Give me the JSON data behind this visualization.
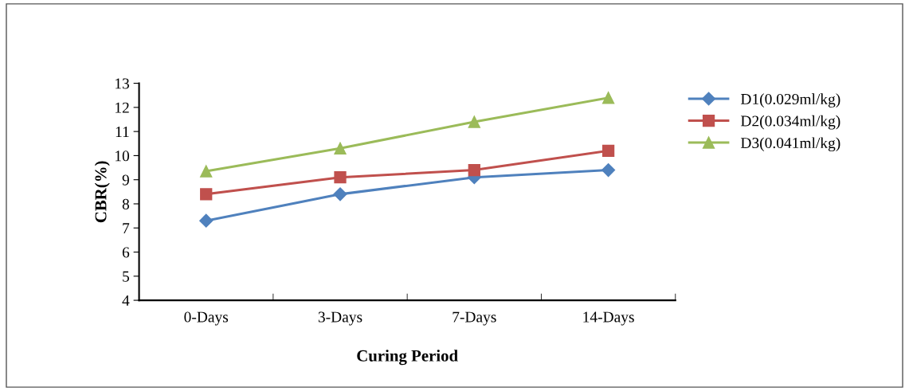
{
  "chart_data": {
    "type": "line",
    "xlabel": "Curing Period",
    "ylabel": "CBR(%)",
    "categories": [
      "0-Days",
      "3-Days",
      "7-Days",
      "14-Days"
    ],
    "series": [
      {
        "name": "D1(0.029ml/kg)",
        "color": "#4f81bd",
        "marker": "diamond",
        "values": [
          7.3,
          8.4,
          9.1,
          9.4
        ]
      },
      {
        "name": "D2(0.034ml/kg)",
        "color": "#c0504d",
        "marker": "square",
        "values": [
          8.4,
          9.1,
          9.4,
          10.2
        ]
      },
      {
        "name": "D3(0.041ml/kg)",
        "color": "#9bbb59",
        "marker": "triangle",
        "values": [
          9.35,
          10.3,
          11.4,
          12.4
        ]
      }
    ],
    "ylim": [
      4,
      13
    ],
    "yticks": [
      4,
      5,
      6,
      7,
      8,
      9,
      10,
      11,
      12,
      13
    ],
    "grid": false,
    "legend": "right",
    "line_style": "solid"
  }
}
